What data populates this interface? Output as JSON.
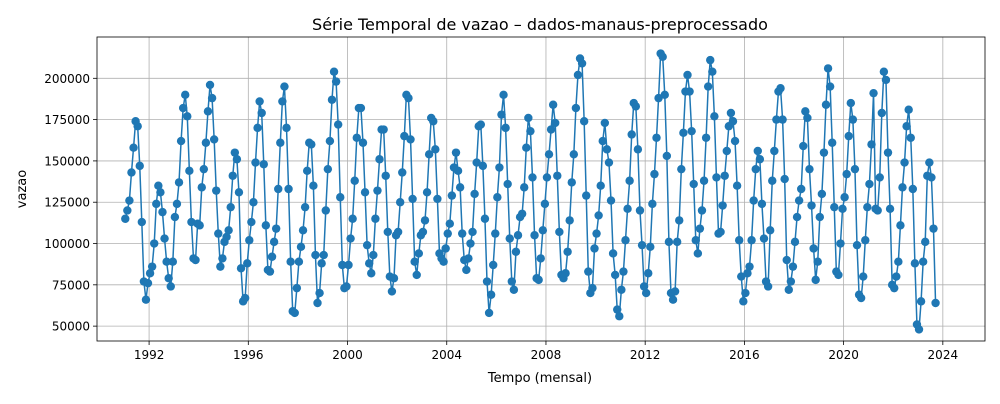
{
  "chart_data": {
    "type": "line",
    "title": "Série Temporal de vazao – dados-manaus-preprocessado",
    "xlabel": "Tempo (mensal)",
    "ylabel": "vazao",
    "grid": true,
    "legend": "none",
    "x_ticks": [
      1992,
      1996,
      2000,
      2004,
      2008,
      2012,
      2016,
      2020,
      2024
    ],
    "x_tick_labels": [
      "1992",
      "1996",
      "2000",
      "2004",
      "2008",
      "2012",
      "2016",
      "2020",
      "2024"
    ],
    "y_ticks": [
      50000,
      75000,
      100000,
      125000,
      150000,
      175000,
      200000
    ],
    "y_tick_labels": [
      "50000",
      "75000",
      "100000",
      "125000",
      "150000",
      "175000",
      "200000"
    ],
    "xlim": [
      1989.9,
      2025.7
    ],
    "ylim": [
      41000,
      225000
    ],
    "x_start": 1991.04,
    "x_step": 0.0833333,
    "series": [
      {
        "color": "#1f77b4",
        "marker": "circle",
        "values": [
          115000,
          120000,
          126000,
          143000,
          158000,
          174000,
          171000,
          147000,
          113000,
          77000,
          66000,
          76000,
          82000,
          86000,
          100000,
          124000,
          135000,
          131000,
          119000,
          103000,
          89000,
          79000,
          74000,
          89000,
          116000,
          124000,
          137000,
          162000,
          182000,
          190000,
          177000,
          144000,
          113000,
          91000,
          90000,
          112000,
          111000,
          134000,
          145000,
          161000,
          180000,
          196000,
          188000,
          163000,
          132000,
          106000,
          86000,
          91000,
          101000,
          104000,
          108000,
          122000,
          141000,
          155000,
          151000,
          131000,
          85000,
          65000,
          67000,
          88000,
          102000,
          113000,
          125000,
          149000,
          170000,
          186000,
          179000,
          148000,
          111000,
          84000,
          83000,
          92000,
          101000,
          109000,
          133000,
          161000,
          186000,
          195000,
          170000,
          133000,
          89000,
          59000,
          58000,
          73000,
          89000,
          98000,
          108000,
          122000,
          144000,
          161000,
          160000,
          135000,
          93000,
          64000,
          70000,
          88000,
          93000,
          120000,
          145000,
          162000,
          187000,
          204000,
          198000,
          172000,
          128000,
          87000,
          73000,
          74000,
          87000,
          103000,
          115000,
          138000,
          164000,
          182000,
          182000,
          161000,
          131000,
          99000,
          88000,
          82000,
          93000,
          115000,
          132000,
          151000,
          169000,
          169000,
          141000,
          107000,
          80000,
          71000,
          79000,
          105000,
          107000,
          125000,
          143000,
          165000,
          190000,
          188000,
          163000,
          127000,
          89000,
          81000,
          94000,
          105000,
          107000,
          114000,
          131000,
          154000,
          176000,
          174000,
          157000,
          127000,
          94000,
          91000,
          89000,
          97000,
          106000,
          112000,
          129000,
          146000,
          155000,
          144000,
          134000,
          106000,
          90000,
          84000,
          91000,
          100000,
          107000,
          130000,
          149000,
          171000,
          172000,
          147000,
          115000,
          77000,
          58000,
          69000,
          87000,
          106000,
          128000,
          146000,
          178000,
          190000,
          170000,
          136000,
          103000,
          77000,
          72000,
          95000,
          105000,
          116000,
          118000,
          134000,
          158000,
          176000,
          168000,
          140000,
          105000,
          79000,
          78000,
          91000,
          108000,
          124000,
          140000,
          154000,
          169000,
          184000,
          173000,
          141000,
          107000,
          81000,
          79000,
          82000,
          95000,
          114000,
          137000,
          154000,
          182000,
          202000,
          212000,
          209000,
          174000,
          129000,
          83000,
          70000,
          73000,
          97000,
          106000,
          117000,
          135000,
          162000,
          173000,
          157000,
          149000,
          126000,
          94000,
          81000,
          60000,
          56000,
          72000,
          83000,
          102000,
          121000,
          138000,
          166000,
          185000,
          183000,
          157000,
          120000,
          99000,
          74000,
          70000,
          82000,
          98000,
          124000,
          142000,
          164000,
          188000,
          215000,
          213000,
          190000,
          153000,
          101000,
          70000,
          66000,
          71000,
          101000,
          114000,
          145000,
          167000,
          192000,
          202000,
          192000,
          168000,
          136000,
          102000,
          94000,
          109000,
          120000,
          138000,
          164000,
          195000,
          211000,
          204000,
          177000,
          140000,
          106000,
          107000,
          123000,
          141000,
          156000,
          171000,
          179000,
          174000,
          162000,
          135000,
          102000,
          80000,
          65000,
          70000,
          82000,
          86000,
          102000,
          126000,
          145000,
          156000,
          151000,
          124000,
          103000,
          77000,
          74000,
          108000,
          138000,
          156000,
          175000,
          192000,
          194000,
          175000,
          139000,
          90000,
          72000,
          77000,
          86000,
          101000,
          116000,
          126000,
          133000,
          159000,
          180000,
          176000,
          145000,
          123000,
          97000,
          78000,
          89000,
          116000,
          130000,
          155000,
          184000,
          206000,
          195000,
          161000,
          122000,
          83000,
          81000,
          100000,
          121000,
          128000,
          142000,
          165000,
          185000,
          175000,
          145000,
          99000,
          69000,
          67000,
          80000,
          102000,
          122000,
          136000,
          160000,
          191000,
          121000,
          120000,
          140000,
          179000,
          204000,
          199000,
          155000,
          121000,
          75000,
          73000,
          80000,
          89000,
          111000,
          134000,
          149000,
          171000,
          181000,
          164000,
          133000,
          88000,
          51000,
          48000,
          65000,
          89000,
          101000,
          141000,
          149000,
          140000,
          109000,
          64000
        ]
      }
    ]
  }
}
